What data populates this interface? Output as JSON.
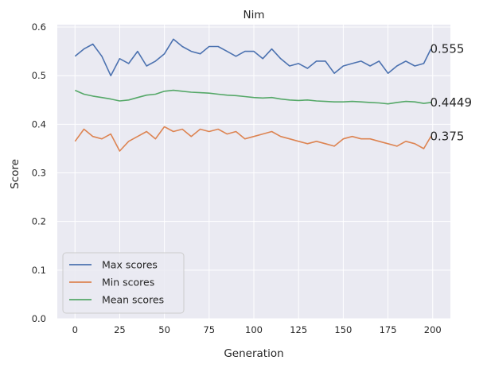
{
  "chart_data": {
    "type": "line",
    "title": "Nim",
    "xlabel": "Generation",
    "ylabel": "Score",
    "xlim": [
      -9.9,
      209.9
    ],
    "ylim": [
      0,
      0.605
    ],
    "xticks": [
      0,
      25,
      50,
      75,
      100,
      125,
      150,
      175,
      200
    ],
    "xtick_labels": [
      "0",
      "25",
      "50",
      "75",
      "100",
      "125",
      "150",
      "175",
      "200"
    ],
    "yticks": [
      0.0,
      0.1,
      0.2,
      0.3,
      0.4,
      0.5,
      0.6
    ],
    "ytick_labels": [
      "0.0",
      "0.1",
      "0.2",
      "0.3",
      "0.4",
      "0.5",
      "0.6"
    ],
    "grid": true,
    "legend_position": "lower-left",
    "background": "#eaeaf2",
    "series": [
      {
        "name": "Max scores",
        "color": "#4c72b0",
        "final_label": "0.555",
        "x": [
          0,
          5,
          10,
          15,
          20,
          25,
          30,
          35,
          40,
          45,
          50,
          55,
          60,
          65,
          70,
          75,
          80,
          85,
          90,
          95,
          100,
          105,
          110,
          115,
          120,
          125,
          130,
          135,
          140,
          145,
          150,
          155,
          160,
          165,
          170,
          175,
          180,
          185,
          190,
          195,
          199
        ],
        "y": [
          0.54,
          0.555,
          0.565,
          0.54,
          0.5,
          0.535,
          0.525,
          0.55,
          0.52,
          0.53,
          0.545,
          0.575,
          0.56,
          0.55,
          0.545,
          0.56,
          0.56,
          0.55,
          0.54,
          0.55,
          0.55,
          0.535,
          0.555,
          0.535,
          0.52,
          0.525,
          0.515,
          0.53,
          0.53,
          0.505,
          0.52,
          0.525,
          0.53,
          0.52,
          0.53,
          0.505,
          0.52,
          0.53,
          0.52,
          0.525,
          0.555
        ]
      },
      {
        "name": "Min scores",
        "color": "#dd8452",
        "final_label": "0.375",
        "x": [
          0,
          5,
          10,
          15,
          20,
          25,
          30,
          35,
          40,
          45,
          50,
          55,
          60,
          65,
          70,
          75,
          80,
          85,
          90,
          95,
          100,
          105,
          110,
          115,
          120,
          125,
          130,
          135,
          140,
          145,
          150,
          155,
          160,
          165,
          170,
          175,
          180,
          185,
          190,
          195,
          199
        ],
        "y": [
          0.365,
          0.39,
          0.375,
          0.37,
          0.38,
          0.345,
          0.365,
          0.375,
          0.385,
          0.37,
          0.395,
          0.385,
          0.39,
          0.375,
          0.39,
          0.385,
          0.39,
          0.38,
          0.385,
          0.37,
          0.375,
          0.38,
          0.385,
          0.375,
          0.37,
          0.365,
          0.36,
          0.365,
          0.36,
          0.355,
          0.37,
          0.375,
          0.37,
          0.37,
          0.365,
          0.36,
          0.355,
          0.365,
          0.36,
          0.35,
          0.375
        ]
      },
      {
        "name": "Mean scores",
        "color": "#55a868",
        "final_label": "0.4449",
        "x": [
          0,
          5,
          10,
          15,
          20,
          25,
          30,
          35,
          40,
          45,
          50,
          55,
          60,
          65,
          70,
          75,
          80,
          85,
          90,
          95,
          100,
          105,
          110,
          115,
          120,
          125,
          130,
          135,
          140,
          145,
          150,
          155,
          160,
          165,
          170,
          175,
          180,
          185,
          190,
          195,
          199
        ],
        "y": [
          0.47,
          0.462,
          0.458,
          0.455,
          0.452,
          0.448,
          0.45,
          0.455,
          0.46,
          0.462,
          0.468,
          0.47,
          0.468,
          0.466,
          0.465,
          0.464,
          0.462,
          0.46,
          0.459,
          0.457,
          0.455,
          0.454,
          0.455,
          0.452,
          0.45,
          0.449,
          0.45,
          0.448,
          0.447,
          0.446,
          0.446,
          0.447,
          0.446,
          0.445,
          0.444,
          0.442,
          0.445,
          0.447,
          0.446,
          0.443,
          0.4449
        ]
      }
    ]
  }
}
